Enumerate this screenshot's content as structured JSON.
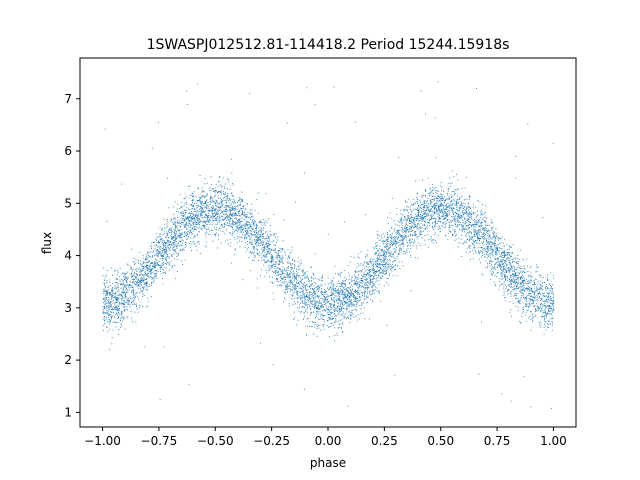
{
  "chart_data": {
    "type": "scatter",
    "title": "1SWASPJ012512.81-114418.2 Period 15244.15918s",
    "xlabel": "phase",
    "ylabel": "flux",
    "xlim": [
      -1.1,
      1.1
    ],
    "ylim": [
      0.72,
      7.78
    ],
    "x_ticks": [
      -1.0,
      -0.75,
      -0.5,
      -0.25,
      0.0,
      0.25,
      0.5,
      0.75,
      1.0
    ],
    "x_tick_labels": [
      "−1.00",
      "−0.75",
      "−0.50",
      "−0.25",
      "0.00",
      "0.25",
      "0.50",
      "0.75",
      "1.00"
    ],
    "y_ticks": [
      1,
      2,
      3,
      4,
      5,
      6,
      7
    ],
    "y_tick_labels": [
      "1",
      "2",
      "3",
      "4",
      "5",
      "6",
      "7"
    ],
    "grid": false,
    "marker_color": "#1f77b4",
    "light_curve_model": {
      "description_of_shape": "sinusoidal double-wave, minima at phase -1, 0, 1; maxima near phase -0.5 and 0.5",
      "mean_flux": 4.0,
      "amplitude": 0.9,
      "scatter": 0.25
    },
    "series": [
      {
        "values_sampled": [
          [
            -1.0,
            3.1
          ],
          [
            -0.9,
            3.3
          ],
          [
            -0.8,
            3.9
          ],
          [
            -0.75,
            4.2
          ],
          [
            -0.7,
            4.5
          ],
          [
            -0.6,
            4.8
          ],
          [
            -0.5,
            4.9
          ],
          [
            -0.4,
            4.8
          ],
          [
            -0.3,
            4.5
          ],
          [
            -0.25,
            4.2
          ],
          [
            -0.2,
            3.9
          ],
          [
            -0.1,
            3.3
          ],
          [
            0.0,
            3.1
          ],
          [
            0.1,
            3.3
          ],
          [
            0.2,
            3.9
          ],
          [
            0.25,
            4.2
          ],
          [
            0.3,
            4.5
          ],
          [
            0.4,
            4.8
          ],
          [
            0.5,
            4.9
          ],
          [
            0.6,
            4.8
          ],
          [
            0.7,
            4.5
          ],
          [
            0.75,
            4.2
          ],
          [
            0.8,
            3.9
          ],
          [
            0.9,
            3.3
          ],
          [
            1.0,
            3.1
          ]
        ]
      }
    ]
  }
}
